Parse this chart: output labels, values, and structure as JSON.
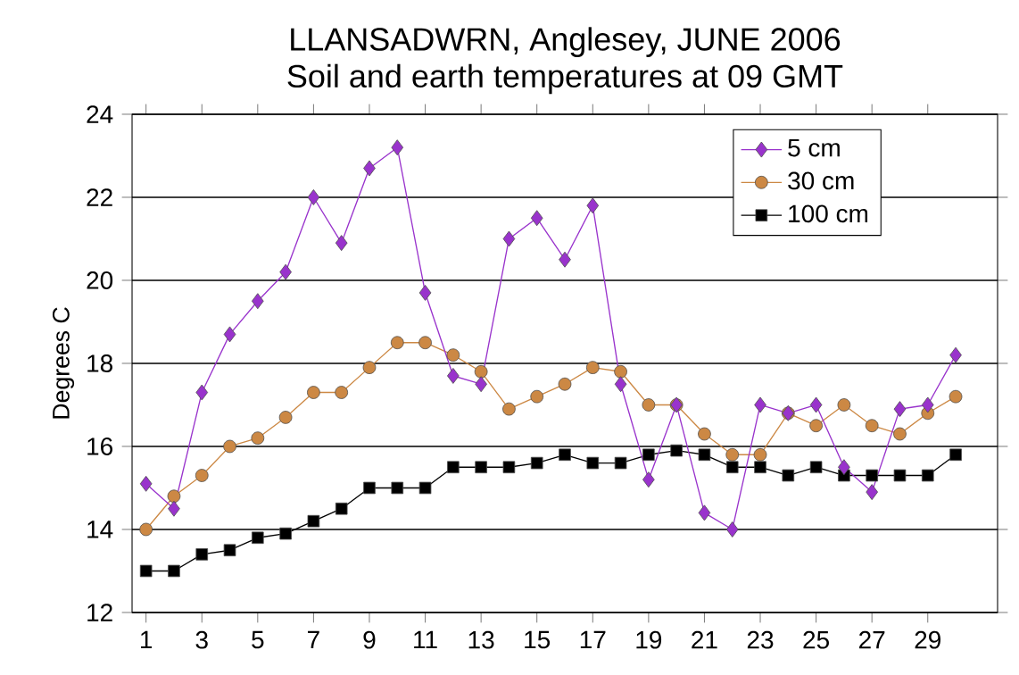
{
  "chart_data": {
    "type": "line",
    "title": "LLANSADWRN, Anglesey, JUNE 2006",
    "subtitle": "Soil and earth temperatures at 09 GMT",
    "ylabel": "Degrees C",
    "x": [
      1,
      2,
      3,
      4,
      5,
      6,
      7,
      8,
      9,
      10,
      11,
      12,
      13,
      14,
      15,
      16,
      17,
      18,
      19,
      20,
      21,
      22,
      23,
      24,
      25,
      26,
      27,
      28,
      29,
      30
    ],
    "series": [
      {
        "name": "5 cm",
        "color": "#9933cc",
        "marker": "diamond",
        "values": [
          15.1,
          14.5,
          17.3,
          18.7,
          19.5,
          20.2,
          22.0,
          20.9,
          22.7,
          23.2,
          19.7,
          17.7,
          17.5,
          21.0,
          21.5,
          20.5,
          21.8,
          17.5,
          15.2,
          17.0,
          14.4,
          14.0,
          17.0,
          16.8,
          17.0,
          15.5,
          14.9,
          16.9,
          17.0,
          18.2
        ]
      },
      {
        "name": "30 cm",
        "color": "#cc8844",
        "marker": "circle",
        "values": [
          14.0,
          14.8,
          15.3,
          16.0,
          16.2,
          16.7,
          17.3,
          17.3,
          17.9,
          18.5,
          18.5,
          18.2,
          17.8,
          16.9,
          17.2,
          17.5,
          17.9,
          17.8,
          17.0,
          17.0,
          16.3,
          15.8,
          15.8,
          16.8,
          16.5,
          17.0,
          16.5,
          16.3,
          16.8,
          17.2
        ]
      },
      {
        "name": "100 cm",
        "color": "#000000",
        "marker": "square",
        "values": [
          13.0,
          13.0,
          13.4,
          13.5,
          13.8,
          13.9,
          14.2,
          14.5,
          15.0,
          15.0,
          15.0,
          15.5,
          15.5,
          15.5,
          15.6,
          15.8,
          15.6,
          15.6,
          15.8,
          15.9,
          15.8,
          15.5,
          15.5,
          15.3,
          15.5,
          15.3,
          15.3,
          15.3,
          15.3,
          15.8
        ]
      }
    ],
    "xlim": [
      0.5,
      31.5
    ],
    "xticks": [
      1,
      3,
      5,
      7,
      9,
      11,
      13,
      15,
      17,
      19,
      21,
      23,
      25,
      27,
      29
    ],
    "ylim": [
      12,
      24
    ],
    "yticks": [
      12,
      14,
      16,
      18,
      20,
      22,
      24
    ],
    "grid": "y",
    "legend": "top right"
  }
}
